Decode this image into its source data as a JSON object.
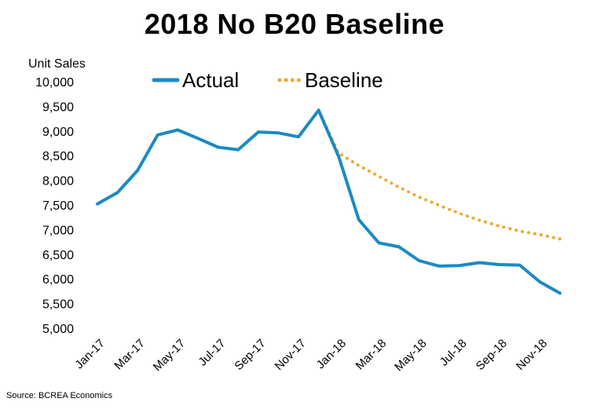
{
  "chart_data": {
    "type": "line",
    "title": "2018 No B20 Baseline",
    "ylabel": "Unit Sales",
    "xlabel": "",
    "ylim": [
      5000,
      10000
    ],
    "yticks": [
      "5,000",
      "5,500",
      "6,000",
      "6,500",
      "7,000",
      "7,500",
      "8,000",
      "8,500",
      "9,000",
      "9,500",
      "10,000"
    ],
    "ytick_values": [
      5000,
      5500,
      6000,
      6500,
      7000,
      7500,
      8000,
      8500,
      9000,
      9500,
      10000
    ],
    "categories": [
      "Jan-17",
      "Feb-17",
      "Mar-17",
      "Apr-17",
      "May-17",
      "Jun-17",
      "Jul-17",
      "Aug-17",
      "Sep-17",
      "Oct-17",
      "Nov-17",
      "Dec-17",
      "Jan-18",
      "Feb-18",
      "Mar-18",
      "Apr-18",
      "May-18",
      "Jun-18",
      "Jul-18",
      "Aug-18",
      "Sep-18",
      "Oct-18",
      "Nov-18",
      "Dec-18"
    ],
    "xtick_labels": [
      "Jan-17",
      "Mar-17",
      "May-17",
      "Jul-17",
      "Sep-17",
      "Nov-17",
      "Jan-18",
      "Mar-18",
      "May-18",
      "Jul-18",
      "Sep-18",
      "Nov-18"
    ],
    "legend_position": "top",
    "grid": false,
    "series": [
      {
        "name": "Actual",
        "style": "solid",
        "color": "#1b8ac4",
        "values": [
          7520,
          7750,
          8200,
          8920,
          9020,
          8850,
          8670,
          8620,
          8980,
          8960,
          8880,
          9420,
          8480,
          7200,
          6730,
          6650,
          6370,
          6260,
          6270,
          6330,
          6290,
          6280,
          5940,
          5710
        ]
      },
      {
        "name": "Baseline",
        "style": "dotted",
        "color": "#f0a830",
        "values": [
          null,
          null,
          null,
          null,
          null,
          null,
          null,
          null,
          null,
          null,
          null,
          9420,
          8550,
          8300,
          8080,
          7860,
          7660,
          7490,
          7330,
          7190,
          7070,
          6970,
          6900,
          6810
        ]
      }
    ]
  },
  "source": "Source: BCREA Economics"
}
